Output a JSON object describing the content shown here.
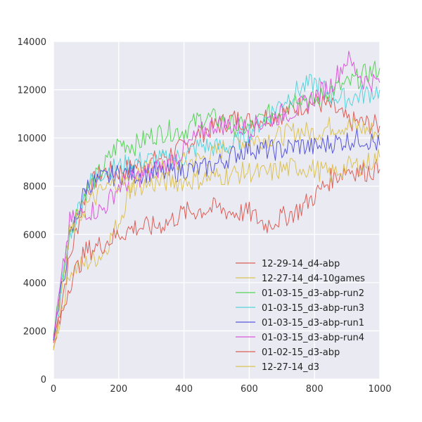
{
  "chart_data": {
    "type": "line",
    "title": "",
    "xlabel": "",
    "ylabel": "",
    "xlim": [
      0,
      1000
    ],
    "ylim": [
      0,
      14000
    ],
    "grid": true,
    "background": "#EAEAF2",
    "legend_position": "lower-right",
    "x_ticks": [
      0,
      200,
      400,
      600,
      800,
      1000
    ],
    "y_ticks": [
      0,
      2000,
      4000,
      6000,
      8000,
      10000,
      12000,
      14000
    ],
    "x": [
      0,
      50,
      100,
      150,
      200,
      250,
      300,
      350,
      400,
      450,
      500,
      550,
      600,
      650,
      700,
      750,
      800,
      850,
      900,
      950,
      1000
    ],
    "series": [
      {
        "name": "12-29-14_d4-abp",
        "color": "#DB5F57",
        "values": [
          1500,
          5000,
          7800,
          8600,
          8600,
          8800,
          9000,
          9300,
          9600,
          10200,
          10500,
          10800,
          10700,
          10900,
          11000,
          11300,
          11500,
          11300,
          10700,
          10600,
          10500
        ]
      },
      {
        "name": "12-27-14_d4-10games",
        "color": "#DBC257",
        "values": [
          1200,
          4500,
          4800,
          5200,
          6500,
          8500,
          8700,
          8700,
          9000,
          9100,
          9400,
          9800,
          9900,
          10000,
          10100,
          10300,
          10200,
          10500,
          10500,
          10400,
          10200
        ]
      },
      {
        "name": "01-03-15_d3-abp-run2",
        "color": "#57D357",
        "values": [
          1800,
          6200,
          7800,
          8700,
          9800,
          9700,
          10100,
          10300,
          10300,
          10800,
          10800,
          10500,
          10400,
          10900,
          11200,
          11800,
          11500,
          12000,
          12200,
          12600,
          12900
        ]
      },
      {
        "name": "01-03-15_d3-abp-run3",
        "color": "#57D3DB",
        "values": [
          1600,
          6000,
          8000,
          8600,
          8800,
          9000,
          9100,
          9100,
          9200,
          9700,
          9600,
          9700,
          10300,
          10800,
          11500,
          12000,
          12300,
          11800,
          11600,
          11800,
          12000
        ]
      },
      {
        "name": "01-03-15_d3-abp-run1",
        "color": "#5757DB",
        "values": [
          1600,
          5800,
          8000,
          8300,
          8500,
          8500,
          8600,
          8500,
          8700,
          8700,
          8900,
          9300,
          9600,
          9500,
          9500,
          9700,
          9600,
          9800,
          9900,
          10000,
          9700
        ]
      },
      {
        "name": "01-03-15_d3-abp-run4",
        "color": "#DB57DB",
        "values": [
          1700,
          6500,
          7000,
          7000,
          8000,
          8300,
          8600,
          8900,
          9500,
          10200,
          10600,
          10500,
          10400,
          10700,
          11000,
          11200,
          11700,
          12200,
          13300,
          12400,
          12300
        ]
      },
      {
        "name": "01-02-15_d3-abp",
        "color": "#DB5F57",
        "values": [
          1300,
          4000,
          5300,
          5600,
          6000,
          6300,
          6300,
          6500,
          6900,
          7000,
          7100,
          6900,
          6900,
          6400,
          6700,
          7000,
          7600,
          8300,
          8700,
          8600,
          8700
        ]
      },
      {
        "name": "12-27-14_d3",
        "color": "#DBC257",
        "values": [
          1200,
          6000,
          7200,
          7800,
          8200,
          8000,
          8100,
          8200,
          8200,
          8300,
          8400,
          8500,
          8600,
          8500,
          8700,
          8800,
          8700,
          8500,
          8800,
          8900,
          9200
        ]
      }
    ]
  }
}
